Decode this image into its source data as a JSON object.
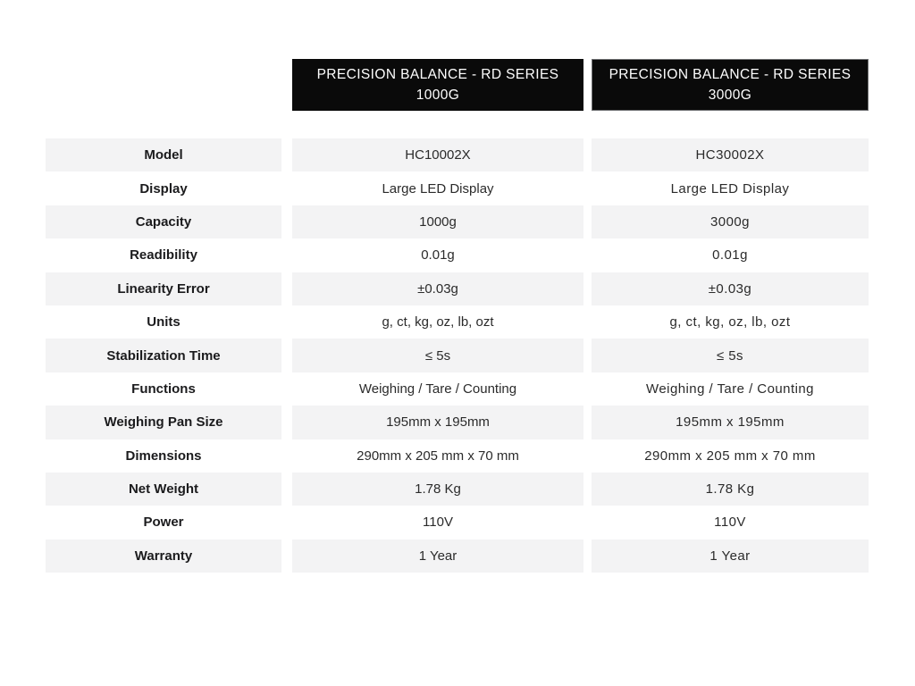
{
  "headers": {
    "rd1000": {
      "line1": "PRECISION BALANCE - RD SERIES",
      "line2": "1000G"
    },
    "rd3000": {
      "line1": "PRECISION BALANCE - RD SERIES",
      "line2": "3000G"
    }
  },
  "table": {
    "rows": [
      {
        "label": "Model",
        "rd1000": "HC10002X",
        "rd3000": "HC30002X"
      },
      {
        "label": "Display",
        "rd1000": "Large LED Display",
        "rd3000": "Large LED Display"
      },
      {
        "label": "Capacity",
        "rd1000": "1000g",
        "rd3000": "3000g"
      },
      {
        "label": "Readibility",
        "rd1000": "0.01g",
        "rd3000": "0.01g"
      },
      {
        "label": "Linearity Error",
        "rd1000": "±0.03g",
        "rd3000": "±0.03g"
      },
      {
        "label": "Units",
        "rd1000": "g, ct, kg, oz, lb, ozt",
        "rd3000": "g, ct, kg, oz, lb, ozt"
      },
      {
        "label": "Stabilization Time",
        "rd1000": "≤ 5s",
        "rd3000": "≤ 5s"
      },
      {
        "label": "Functions",
        "rd1000": "Weighing / Tare / Counting",
        "rd3000": "Weighing / Tare / Counting"
      },
      {
        "label": "Weighing Pan Size",
        "rd1000": "195mm x 195mm",
        "rd3000": "195mm x 195mm"
      },
      {
        "label": "Dimensions",
        "rd1000": "290mm x 205 mm x 70 mm",
        "rd3000": "290mm x 205 mm x 70 mm"
      },
      {
        "label": "Net Weight",
        "rd1000": "1.78 Kg",
        "rd3000": "1.78 Kg"
      },
      {
        "label": "Power",
        "rd1000": "110V",
        "rd3000": "110V"
      },
      {
        "label": "Warranty",
        "rd1000": "1 Year",
        "rd3000": "1 Year"
      }
    ]
  },
  "colors": {
    "header_bg": "#0a0a0a",
    "header_text": "#ffffff",
    "row_shade": "#f3f3f4",
    "label_text": "#1b1b1d",
    "value_text": "#2b2b2b"
  }
}
